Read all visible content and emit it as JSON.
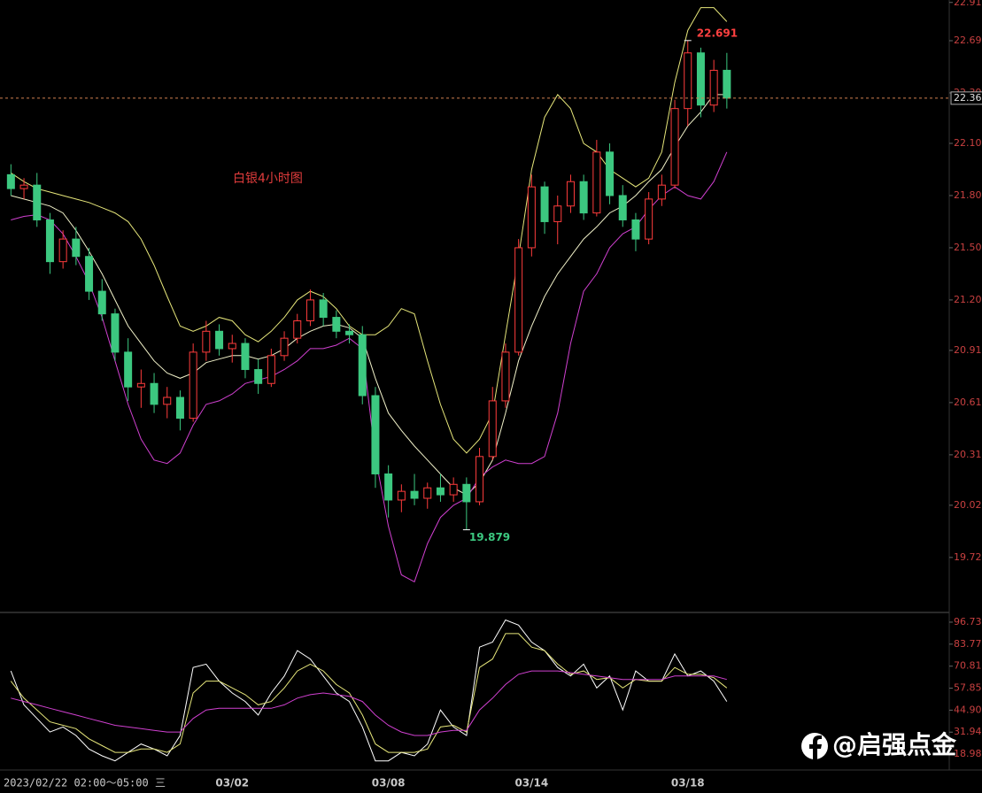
{
  "chart_data": [
    {
      "type": "candlestick",
      "title": "白银4小时图",
      "categories": [
        null,
        null,
        null,
        null,
        null,
        null,
        null,
        null,
        null,
        null,
        null,
        null,
        null,
        null,
        null,
        null,
        null,
        "03/02",
        null,
        null,
        null,
        null,
        null,
        null,
        null,
        null,
        null,
        null,
        null,
        "03/08",
        null,
        null,
        null,
        null,
        null,
        null,
        null,
        null,
        null,
        null,
        "03/14",
        null,
        null,
        null,
        null,
        null,
        null,
        null,
        null,
        null,
        null,
        null,
        "03/18",
        null,
        null,
        null
      ],
      "open": [
        21.92,
        21.84,
        21.86,
        21.66,
        21.42,
        21.55,
        21.45,
        21.25,
        21.12,
        20.9,
        20.7,
        20.72,
        20.6,
        20.64,
        20.52,
        20.9,
        21.02,
        20.92,
        20.95,
        20.8,
        20.72,
        20.88,
        20.98,
        21.08,
        21.2,
        21.1,
        21.02,
        21.0,
        20.65,
        20.2,
        20.05,
        20.1,
        20.06,
        20.12,
        20.08,
        20.14,
        20.04,
        20.3,
        20.62,
        20.9,
        21.5,
        21.85,
        21.65,
        21.74,
        21.88,
        21.7,
        22.05,
        21.8,
        21.66,
        21.55,
        21.78,
        21.86,
        22.3,
        22.62,
        22.32,
        22.52
      ],
      "high": [
        21.98,
        21.9,
        21.93,
        21.7,
        21.6,
        21.62,
        21.5,
        21.32,
        21.15,
        20.98,
        20.8,
        20.78,
        20.7,
        20.68,
        20.95,
        21.08,
        21.06,
        21.0,
        20.98,
        20.86,
        20.92,
        21.02,
        21.12,
        21.26,
        21.24,
        21.14,
        21.06,
        21.05,
        20.7,
        20.25,
        20.14,
        20.2,
        20.15,
        20.2,
        20.18,
        20.18,
        20.35,
        20.7,
        20.95,
        21.55,
        21.92,
        21.88,
        21.8,
        21.92,
        21.92,
        22.12,
        22.1,
        21.86,
        21.7,
        21.82,
        21.92,
        22.35,
        22.691,
        22.65,
        22.58,
        22.62
      ],
      "low": [
        21.8,
        21.78,
        21.62,
        21.35,
        21.38,
        21.4,
        21.2,
        21.08,
        20.85,
        20.62,
        20.58,
        20.55,
        20.52,
        20.45,
        20.5,
        20.85,
        20.88,
        20.84,
        20.75,
        20.66,
        20.7,
        20.85,
        20.95,
        21.05,
        21.05,
        20.98,
        20.95,
        20.6,
        20.12,
        19.95,
        19.98,
        20.02,
        20.0,
        20.04,
        20.04,
        19.879,
        20.02,
        20.28,
        20.58,
        20.88,
        21.45,
        21.58,
        21.52,
        21.7,
        21.66,
        21.68,
        21.75,
        21.62,
        21.48,
        21.52,
        21.74,
        21.84,
        22.2,
        22.25,
        22.28,
        22.3
      ],
      "close": [
        21.84,
        21.86,
        21.66,
        21.42,
        21.55,
        21.45,
        21.25,
        21.12,
        20.9,
        20.7,
        20.72,
        20.6,
        20.64,
        20.52,
        20.9,
        21.02,
        20.92,
        20.95,
        20.8,
        20.72,
        20.88,
        20.98,
        21.08,
        21.2,
        21.1,
        21.02,
        21.0,
        20.65,
        20.2,
        20.05,
        20.1,
        20.06,
        20.12,
        20.08,
        20.14,
        20.04,
        20.3,
        20.62,
        20.9,
        21.5,
        21.85,
        21.65,
        21.74,
        21.88,
        21.7,
        22.05,
        21.8,
        21.66,
        21.55,
        21.78,
        21.86,
        22.3,
        22.62,
        22.32,
        22.52,
        22.36
      ],
      "up_color": "#ff3c3c",
      "down_color": "#3cc880",
      "series": [
        {
          "color": "#e6e67a",
          "values": [
            21.93,
            21.88,
            21.84,
            21.82,
            21.8,
            21.78,
            21.76,
            21.73,
            21.7,
            21.65,
            21.55,
            21.4,
            21.22,
            21.05,
            21.02,
            21.05,
            21.1,
            21.08,
            21.0,
            20.96,
            21.02,
            21.1,
            21.2,
            21.25,
            21.22,
            21.15,
            21.05,
            21.0,
            21.0,
            21.05,
            21.15,
            21.12,
            20.85,
            20.6,
            20.4,
            20.32,
            20.4,
            20.55,
            21.0,
            21.45,
            21.95,
            22.25,
            22.38,
            22.3,
            22.1,
            22.05,
            21.95,
            21.9,
            21.85,
            21.9,
            22.05,
            22.45,
            22.75,
            22.88,
            22.88,
            22.8
          ]
        },
        {
          "color": "#f0f0c8",
          "values": [
            21.8,
            21.78,
            21.76,
            21.74,
            21.7,
            21.6,
            21.48,
            21.35,
            21.2,
            21.05,
            20.95,
            20.85,
            20.78,
            20.75,
            20.78,
            20.84,
            20.86,
            20.88,
            20.88,
            20.86,
            20.88,
            20.92,
            20.98,
            21.02,
            21.05,
            21.06,
            21.04,
            20.98,
            20.75,
            20.55,
            20.45,
            20.36,
            20.28,
            20.2,
            20.12,
            20.08,
            20.15,
            20.28,
            20.55,
            20.85,
            21.05,
            21.22,
            21.35,
            21.45,
            21.55,
            21.62,
            21.7,
            21.74,
            21.8,
            21.88,
            21.95,
            22.08,
            22.2,
            22.28,
            22.38,
            22.38
          ]
        },
        {
          "color": "#d040d0",
          "values": [
            21.66,
            21.68,
            21.69,
            21.66,
            21.58,
            21.45,
            21.3,
            21.1,
            20.85,
            20.6,
            20.4,
            20.28,
            20.26,
            20.32,
            20.48,
            20.6,
            20.62,
            20.66,
            20.72,
            20.74,
            20.76,
            20.8,
            20.85,
            20.92,
            20.92,
            20.94,
            20.98,
            20.92,
            20.3,
            19.9,
            19.62,
            19.58,
            19.8,
            19.95,
            20.02,
            20.06,
            20.18,
            20.24,
            20.28,
            20.26,
            20.26,
            20.3,
            20.55,
            20.95,
            21.25,
            21.35,
            21.5,
            21.58,
            21.62,
            21.72,
            21.8,
            21.85,
            21.8,
            21.78,
            21.88,
            22.05
          ]
        }
      ],
      "high_label": 22.691,
      "low_label": 19.879,
      "last_price": 22.36,
      "ylim": [
        19.414,
        22.924
      ],
      "yticks": [
        22.91,
        22.69,
        22.39,
        {
          "value": 22.1,
          "label": "22.10"
        },
        {
          "value": 21.8,
          "label": "21.80"
        },
        {
          "value": 21.5,
          "label": "21.50"
        },
        {
          "value": 21.2,
          "label": "21.20"
        },
        20.91,
        20.61,
        20.31,
        20.02,
        19.72
      ]
    },
    {
      "type": "line",
      "series": [
        {
          "color": "#ffffff",
          "values": [
            68,
            48,
            40,
            32,
            35,
            30,
            22,
            18,
            15,
            20,
            25,
            22,
            18,
            30,
            70,
            72,
            62,
            55,
            50,
            42,
            55,
            65,
            80,
            75,
            65,
            55,
            50,
            35,
            15,
            15,
            20,
            18,
            25,
            45,
            35,
            30,
            82,
            85,
            98,
            95,
            85,
            80,
            70,
            65,
            72,
            58,
            65,
            45,
            68,
            62,
            62,
            78,
            65,
            68,
            62,
            50
          ]
        },
        {
          "color": "#e6e67a",
          "values": [
            62,
            52,
            45,
            38,
            36,
            34,
            28,
            24,
            20,
            20,
            22,
            22,
            20,
            25,
            55,
            62,
            62,
            58,
            54,
            48,
            50,
            58,
            68,
            72,
            68,
            60,
            55,
            42,
            25,
            20,
            20,
            20,
            22,
            35,
            36,
            32,
            70,
            75,
            90,
            90,
            82,
            80,
            72,
            66,
            68,
            63,
            64,
            58,
            63,
            62,
            62,
            70,
            66,
            66,
            64,
            58
          ]
        },
        {
          "color": "#d040d0",
          "values": [
            52,
            50,
            48,
            46,
            44,
            42,
            40,
            38,
            36,
            35,
            34,
            33,
            32,
            32,
            40,
            45,
            46,
            46,
            46,
            46,
            46,
            48,
            52,
            54,
            55,
            54,
            53,
            50,
            42,
            36,
            32,
            30,
            30,
            32,
            33,
            33,
            45,
            52,
            60,
            66,
            68,
            68,
            68,
            67,
            66,
            65,
            64,
            63,
            63,
            63,
            63,
            65,
            65,
            65,
            65,
            63
          ]
        }
      ],
      "ylim": [
        9.65,
        100.88
      ],
      "yticks": [
        96.73,
        83.77,
        70.81,
        57.85,
        {
          "value": 44.9,
          "label": "44.90"
        },
        31.94,
        18.98
      ]
    }
  ],
  "status_label": "2023/02/22 02:00～05:00 三",
  "watermark": "@启强点金"
}
